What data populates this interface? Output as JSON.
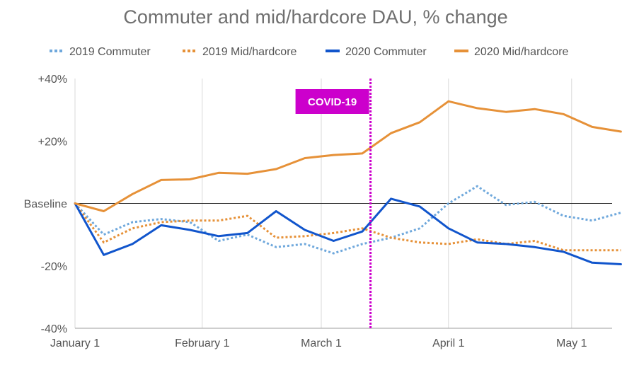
{
  "chart_data": {
    "type": "line",
    "title": "Commuter and mid/hardcore DAU, % change",
    "xlabel": "",
    "ylabel": "",
    "x_unit": "week",
    "x": [
      "2020-01-01",
      "2020-01-08",
      "2020-01-15",
      "2020-01-22",
      "2020-01-29",
      "2020-02-05",
      "2020-02-12",
      "2020-02-19",
      "2020-02-26",
      "2020-03-04",
      "2020-03-11",
      "2020-03-18",
      "2020-03-25",
      "2020-04-01",
      "2020-04-08",
      "2020-04-15",
      "2020-04-22",
      "2020-04-29",
      "2020-05-06",
      "2020-05-13"
    ],
    "ylim": [
      -40,
      40
    ],
    "yticks": [
      {
        "value": 40,
        "label": "+40%"
      },
      {
        "value": 20,
        "label": "+20%"
      },
      {
        "value": 0,
        "label": "Baseline"
      },
      {
        "value": -20,
        "label": "-20%"
      },
      {
        "value": -40,
        "label": "-40%"
      }
    ],
    "xticks": [
      {
        "date": "2020-01-01",
        "label": "January 1"
      },
      {
        "date": "2020-02-01",
        "label": "February 1"
      },
      {
        "date": "2020-03-01",
        "label": "March 1"
      },
      {
        "date": "2020-04-01",
        "label": "April 1"
      },
      {
        "date": "2020-05-01",
        "label": "May 1"
      }
    ],
    "grid": "vertical",
    "legend_position": "top",
    "series": [
      {
        "name": "2019 Commuter",
        "color": "#6fa8dc",
        "style": "dotted",
        "values": [
          0,
          -10,
          -6,
          -5,
          -6,
          -12,
          -10,
          -14,
          -13,
          -16,
          -13,
          -11,
          -8,
          0,
          5.5,
          -0.5,
          0.5,
          -4,
          -5.5,
          -3
        ]
      },
      {
        "name": "2019 Mid/hardcore",
        "color": "#e69138",
        "style": "dotted",
        "values": [
          0,
          -12.5,
          -8,
          -6,
          -5.5,
          -5.5,
          -4,
          -11,
          -10.5,
          -9.5,
          -8,
          -11,
          -12.5,
          -13,
          -11.5,
          -13,
          -12,
          -15,
          -15,
          -15
        ]
      },
      {
        "name": "2020 Commuter",
        "color": "#1155cc",
        "style": "solid",
        "values": [
          0,
          -16.5,
          -13,
          -7,
          -8.5,
          -10.5,
          -9.5,
          -2.5,
          -8.5,
          -12,
          -9,
          1.5,
          -1,
          -8,
          -12.5,
          -13,
          -14,
          -15.5,
          -19,
          -19.5
        ]
      },
      {
        "name": "2020 Mid/hardcore",
        "color": "#e69138",
        "style": "solid",
        "values": [
          0,
          -2.5,
          3,
          7.5,
          7.7,
          9.8,
          9.5,
          11,
          14.5,
          15.5,
          16,
          22.5,
          26,
          32.7,
          30.5,
          29.3,
          30.2,
          28.6,
          24.5,
          23
        ]
      }
    ],
    "annotations": [
      {
        "type": "vertical-line",
        "date": "2020-03-13",
        "label": "COVID-19",
        "color": "#cc00cc"
      }
    ]
  }
}
